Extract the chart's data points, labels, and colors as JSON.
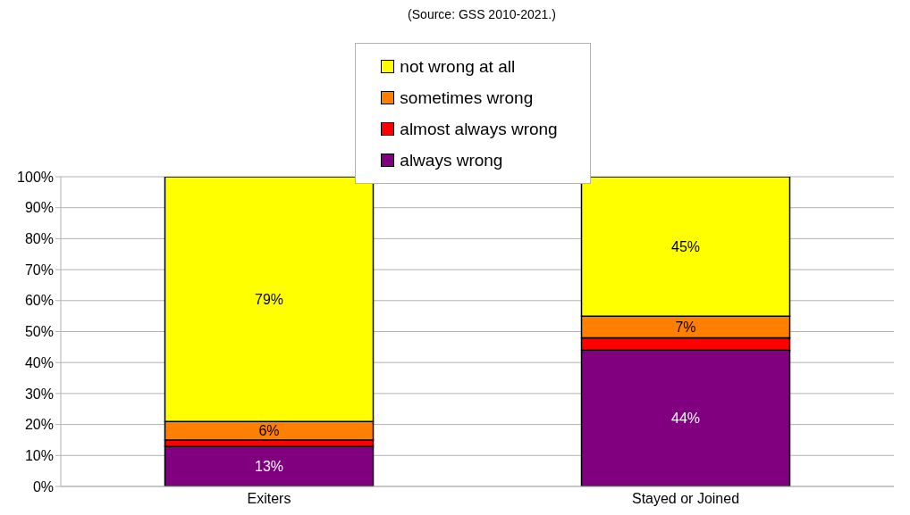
{
  "chart_data": {
    "type": "bar",
    "stacked": true,
    "annotations": [
      "(Source: GSS 2010-2021.)"
    ],
    "categories": [
      "Exiters",
      "Stayed or Joined"
    ],
    "series": [
      {
        "name": "always wrong",
        "color": "#800080",
        "values": [
          13,
          44
        ],
        "value_labels": [
          "13%",
          "44%"
        ]
      },
      {
        "name": "almost always wrong",
        "color": "#ff0000",
        "values": [
          2,
          4
        ],
        "value_labels": [
          null,
          null
        ]
      },
      {
        "name": "sometimes wrong",
        "color": "#ff8000",
        "values": [
          6,
          7
        ],
        "value_labels": [
          "6%",
          "7%"
        ]
      },
      {
        "name": "not wrong at all",
        "color": "#ffff00",
        "values": [
          79,
          45
        ],
        "value_labels": [
          "79%",
          "45%"
        ]
      }
    ],
    "ylim": [
      0,
      100
    ],
    "yticks": [
      {
        "value": 0,
        "label": "0%"
      },
      {
        "value": 10,
        "label": "10%"
      },
      {
        "value": 20,
        "label": "20%"
      },
      {
        "value": 30,
        "label": "30%"
      },
      {
        "value": 40,
        "label": "40%"
      },
      {
        "value": 50,
        "label": "50%"
      },
      {
        "value": 60,
        "label": "60%"
      },
      {
        "value": 70,
        "label": "70%"
      },
      {
        "value": 80,
        "label": "80%"
      },
      {
        "value": 90,
        "label": "90%"
      },
      {
        "value": 100,
        "label": "100%"
      }
    ],
    "grid": "y",
    "legend": "top"
  }
}
